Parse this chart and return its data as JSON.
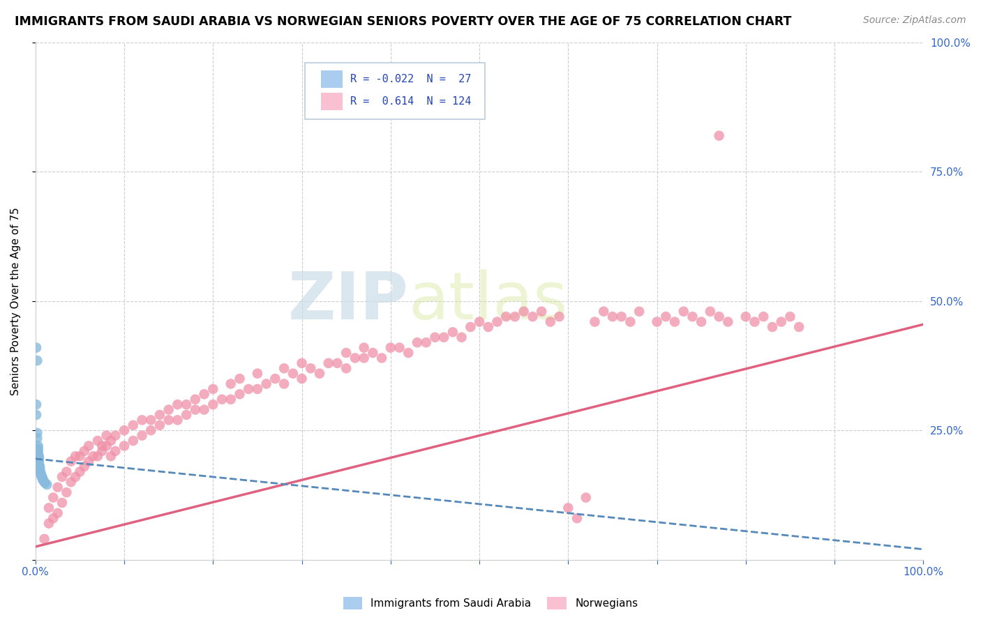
{
  "title": "IMMIGRANTS FROM SAUDI ARABIA VS NORWEGIAN SENIORS POVERTY OVER THE AGE OF 75 CORRELATION CHART",
  "source": "Source: ZipAtlas.com",
  "ylabel": "Seniors Poverty Over the Age of 75",
  "xlim": [
    0,
    1.0
  ],
  "ylim": [
    0,
    1.0
  ],
  "saudi_color": "#88bbdd",
  "norwegian_color": "#f090a8",
  "saudi_line_color": "#5588bb",
  "norwegian_line_color": "#e06080",
  "saudi_legend_color": "#aaccee",
  "norwegian_legend_color": "#f8c0d0",
  "background_color": "#ffffff",
  "grid_color": "#cccccc",
  "title_fontsize": 12.5,
  "source_fontsize": 10,
  "axis_label_fontsize": 11,
  "tick_label_fontsize": 11,
  "watermark_color": "#ccdde8",
  "watermark_alpha": 0.7,
  "saudi_points": [
    [
      0.002,
      0.385
    ],
    [
      0.001,
      0.41
    ],
    [
      0.001,
      0.3
    ],
    [
      0.001,
      0.28
    ],
    [
      0.002,
      0.245
    ],
    [
      0.002,
      0.235
    ],
    [
      0.003,
      0.22
    ],
    [
      0.003,
      0.215
    ],
    [
      0.003,
      0.21
    ],
    [
      0.003,
      0.205
    ],
    [
      0.004,
      0.2
    ],
    [
      0.004,
      0.195
    ],
    [
      0.004,
      0.19
    ],
    [
      0.004,
      0.185
    ],
    [
      0.005,
      0.18
    ],
    [
      0.005,
      0.175
    ],
    [
      0.005,
      0.17
    ],
    [
      0.006,
      0.168
    ],
    [
      0.006,
      0.165
    ],
    [
      0.007,
      0.162
    ],
    [
      0.007,
      0.16
    ],
    [
      0.008,
      0.158
    ],
    [
      0.008,
      0.155
    ],
    [
      0.009,
      0.153
    ],
    [
      0.01,
      0.15
    ],
    [
      0.011,
      0.148
    ],
    [
      0.013,
      0.145
    ]
  ],
  "norwegian_points": [
    [
      0.01,
      0.04
    ],
    [
      0.015,
      0.07
    ],
    [
      0.015,
      0.1
    ],
    [
      0.02,
      0.08
    ],
    [
      0.02,
      0.12
    ],
    [
      0.025,
      0.09
    ],
    [
      0.025,
      0.14
    ],
    [
      0.03,
      0.11
    ],
    [
      0.03,
      0.16
    ],
    [
      0.035,
      0.13
    ],
    [
      0.035,
      0.17
    ],
    [
      0.04,
      0.15
    ],
    [
      0.04,
      0.19
    ],
    [
      0.045,
      0.16
    ],
    [
      0.045,
      0.2
    ],
    [
      0.05,
      0.17
    ],
    [
      0.05,
      0.2
    ],
    [
      0.055,
      0.18
    ],
    [
      0.055,
      0.21
    ],
    [
      0.06,
      0.19
    ],
    [
      0.06,
      0.22
    ],
    [
      0.065,
      0.2
    ],
    [
      0.07,
      0.2
    ],
    [
      0.07,
      0.23
    ],
    [
      0.075,
      0.21
    ],
    [
      0.075,
      0.22
    ],
    [
      0.08,
      0.22
    ],
    [
      0.08,
      0.24
    ],
    [
      0.085,
      0.2
    ],
    [
      0.085,
      0.23
    ],
    [
      0.09,
      0.21
    ],
    [
      0.09,
      0.24
    ],
    [
      0.1,
      0.22
    ],
    [
      0.1,
      0.25
    ],
    [
      0.11,
      0.23
    ],
    [
      0.11,
      0.26
    ],
    [
      0.12,
      0.24
    ],
    [
      0.12,
      0.27
    ],
    [
      0.13,
      0.25
    ],
    [
      0.13,
      0.27
    ],
    [
      0.14,
      0.26
    ],
    [
      0.14,
      0.28
    ],
    [
      0.15,
      0.27
    ],
    [
      0.15,
      0.29
    ],
    [
      0.16,
      0.27
    ],
    [
      0.16,
      0.3
    ],
    [
      0.17,
      0.28
    ],
    [
      0.17,
      0.3
    ],
    [
      0.18,
      0.29
    ],
    [
      0.18,
      0.31
    ],
    [
      0.19,
      0.29
    ],
    [
      0.19,
      0.32
    ],
    [
      0.2,
      0.3
    ],
    [
      0.2,
      0.33
    ],
    [
      0.21,
      0.31
    ],
    [
      0.22,
      0.31
    ],
    [
      0.22,
      0.34
    ],
    [
      0.23,
      0.32
    ],
    [
      0.23,
      0.35
    ],
    [
      0.24,
      0.33
    ],
    [
      0.25,
      0.33
    ],
    [
      0.25,
      0.36
    ],
    [
      0.26,
      0.34
    ],
    [
      0.27,
      0.35
    ],
    [
      0.28,
      0.34
    ],
    [
      0.28,
      0.37
    ],
    [
      0.29,
      0.36
    ],
    [
      0.3,
      0.35
    ],
    [
      0.3,
      0.38
    ],
    [
      0.31,
      0.37
    ],
    [
      0.32,
      0.36
    ],
    [
      0.33,
      0.38
    ],
    [
      0.34,
      0.38
    ],
    [
      0.35,
      0.37
    ],
    [
      0.35,
      0.4
    ],
    [
      0.36,
      0.39
    ],
    [
      0.37,
      0.39
    ],
    [
      0.37,
      0.41
    ],
    [
      0.38,
      0.4
    ],
    [
      0.39,
      0.39
    ],
    [
      0.4,
      0.41
    ],
    [
      0.41,
      0.41
    ],
    [
      0.42,
      0.4
    ],
    [
      0.43,
      0.42
    ],
    [
      0.44,
      0.42
    ],
    [
      0.45,
      0.43
    ],
    [
      0.46,
      0.43
    ],
    [
      0.47,
      0.44
    ],
    [
      0.48,
      0.43
    ],
    [
      0.49,
      0.45
    ],
    [
      0.5,
      0.46
    ],
    [
      0.51,
      0.45
    ],
    [
      0.52,
      0.46
    ],
    [
      0.53,
      0.47
    ],
    [
      0.54,
      0.47
    ],
    [
      0.55,
      0.48
    ],
    [
      0.56,
      0.47
    ],
    [
      0.57,
      0.48
    ],
    [
      0.58,
      0.46
    ],
    [
      0.59,
      0.47
    ],
    [
      0.6,
      0.1
    ],
    [
      0.61,
      0.08
    ],
    [
      0.62,
      0.12
    ],
    [
      0.63,
      0.46
    ],
    [
      0.64,
      0.48
    ],
    [
      0.65,
      0.47
    ],
    [
      0.66,
      0.47
    ],
    [
      0.67,
      0.46
    ],
    [
      0.68,
      0.48
    ],
    [
      0.7,
      0.46
    ],
    [
      0.71,
      0.47
    ],
    [
      0.72,
      0.46
    ],
    [
      0.73,
      0.48
    ],
    [
      0.74,
      0.47
    ],
    [
      0.75,
      0.46
    ],
    [
      0.76,
      0.48
    ],
    [
      0.77,
      0.47
    ],
    [
      0.78,
      0.46
    ],
    [
      0.8,
      0.47
    ],
    [
      0.81,
      0.46
    ],
    [
      0.82,
      0.47
    ],
    [
      0.83,
      0.45
    ],
    [
      0.77,
      0.82
    ],
    [
      0.84,
      0.46
    ],
    [
      0.85,
      0.47
    ],
    [
      0.86,
      0.45
    ]
  ],
  "saudi_line_x": [
    0.0,
    0.1
  ],
  "saudi_line_y": [
    0.19,
    0.155
  ],
  "norwegian_line_x": [
    0.0,
    1.0
  ],
  "norwegian_line_y": [
    0.025,
    0.455
  ]
}
